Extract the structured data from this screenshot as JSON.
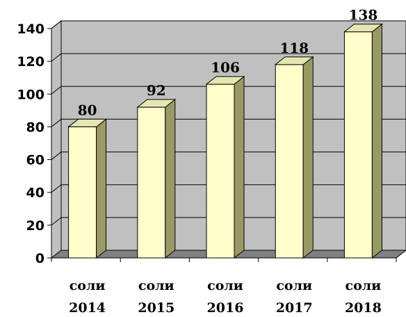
{
  "chart_data": {
    "type": "bar",
    "categories": [
      {
        "line1": "соли",
        "line2": "2014"
      },
      {
        "line1": "соли",
        "line2": "2015"
      },
      {
        "line1": "соли",
        "line2": "2016"
      },
      {
        "line1": "соли",
        "line2": "2017"
      },
      {
        "line1": "соли",
        "line2": "2018"
      }
    ],
    "values": [
      80,
      92,
      106,
      118,
      138
    ],
    "data_labels": [
      "80",
      "92",
      "106",
      "118",
      "138"
    ],
    "ylim": [
      0,
      140
    ],
    "yticks": [
      "0",
      "20",
      "40",
      "60",
      "80",
      "100",
      "120",
      "140"
    ],
    "ytick_values": [
      0,
      20,
      40,
      60,
      80,
      100,
      120,
      140
    ],
    "grid": true,
    "three_d": true,
    "colors": {
      "wall": "#c0c0c0",
      "floor": "#808080",
      "bar_front": "#ffffcc",
      "bar_side": "#999966",
      "bar_top": "#e6e6b3",
      "grid": "#000000"
    }
  }
}
